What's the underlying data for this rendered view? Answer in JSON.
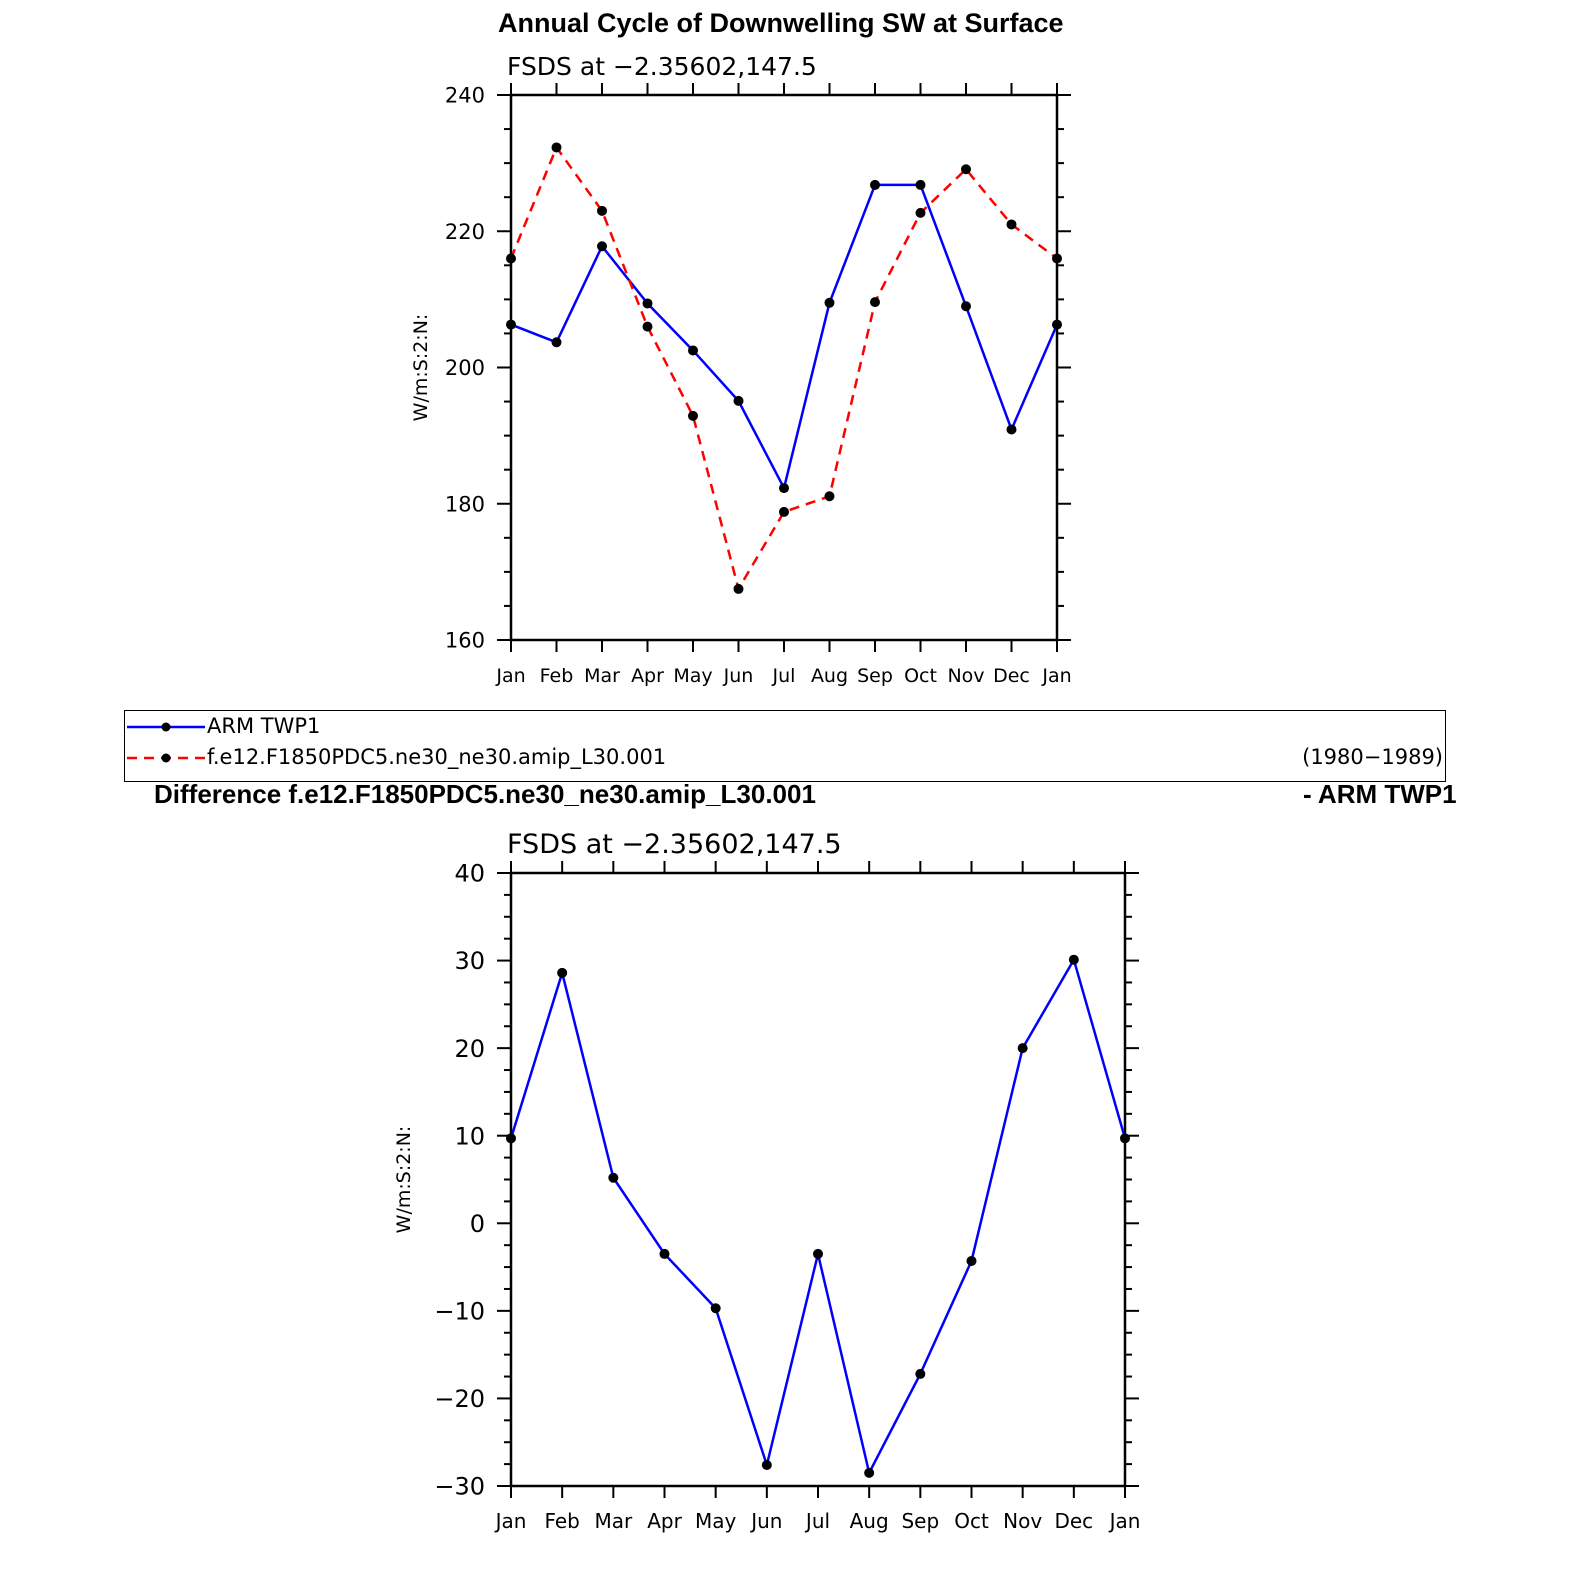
{
  "titles": {
    "top": "Annual Cycle of Downwelling SW at Surface",
    "bottom_left": "Difference f.e12.F1850PDC5.ne30_ne30.amip_L30.001",
    "bottom_right": "- ARM TWP1"
  },
  "legend": {
    "items": [
      {
        "label": "ARM TWP1",
        "color": "#0000ff",
        "dash": "solid"
      },
      {
        "label": "f.e12.F1850PDC5.ne30_ne30.amip_L30.001",
        "color": "#ff0000",
        "dash": "dashed"
      }
    ],
    "period": "(1980−1989)"
  },
  "chart_data": [
    {
      "type": "line",
      "subtitle": "FSDS at −2.35602,147.5",
      "ylabel": "W/m:S:2:N:",
      "categories": [
        "Jan",
        "Feb",
        "Mar",
        "Apr",
        "May",
        "Jun",
        "Jul",
        "Aug",
        "Sep",
        "Oct",
        "Nov",
        "Dec",
        "Jan"
      ],
      "ylim": [
        160,
        240
      ],
      "yticks": [
        160,
        180,
        200,
        220,
        240
      ],
      "series": [
        {
          "name": "ARM TWP1",
          "color": "#0000ff",
          "dash": "solid",
          "values": [
            206.3,
            203.7,
            217.8,
            209.4,
            202.5,
            195.1,
            182.3,
            209.5,
            226.8,
            226.8,
            209.0,
            190.9,
            206.3
          ]
        },
        {
          "name": "f.e12.F1850PDC5.ne30_ne30.amip_L30.001",
          "color": "#ff0000",
          "dash": "dashed",
          "values": [
            216.0,
            232.3,
            223.0,
            206.0,
            192.9,
            167.5,
            178.8,
            181.1,
            209.6,
            222.7,
            229.1,
            221.0,
            216.0
          ]
        }
      ]
    },
    {
      "type": "line",
      "subtitle": "FSDS at −2.35602,147.5",
      "ylabel": "W/m:S:2:N:",
      "categories": [
        "Jan",
        "Feb",
        "Mar",
        "Apr",
        "May",
        "Jun",
        "Jul",
        "Aug",
        "Sep",
        "Oct",
        "Nov",
        "Dec",
        "Jan"
      ],
      "ylim": [
        -30,
        40
      ],
      "yticks": [
        -30,
        -20,
        -10,
        0,
        10,
        20,
        30,
        40
      ],
      "series": [
        {
          "color": "#0000ff",
          "dash": "solid",
          "values": [
            9.7,
            28.6,
            5.2,
            -3.5,
            -9.7,
            -27.6,
            -3.5,
            -28.5,
            -17.2,
            -4.3,
            20.0,
            30.1,
            9.7
          ]
        }
      ]
    }
  ]
}
